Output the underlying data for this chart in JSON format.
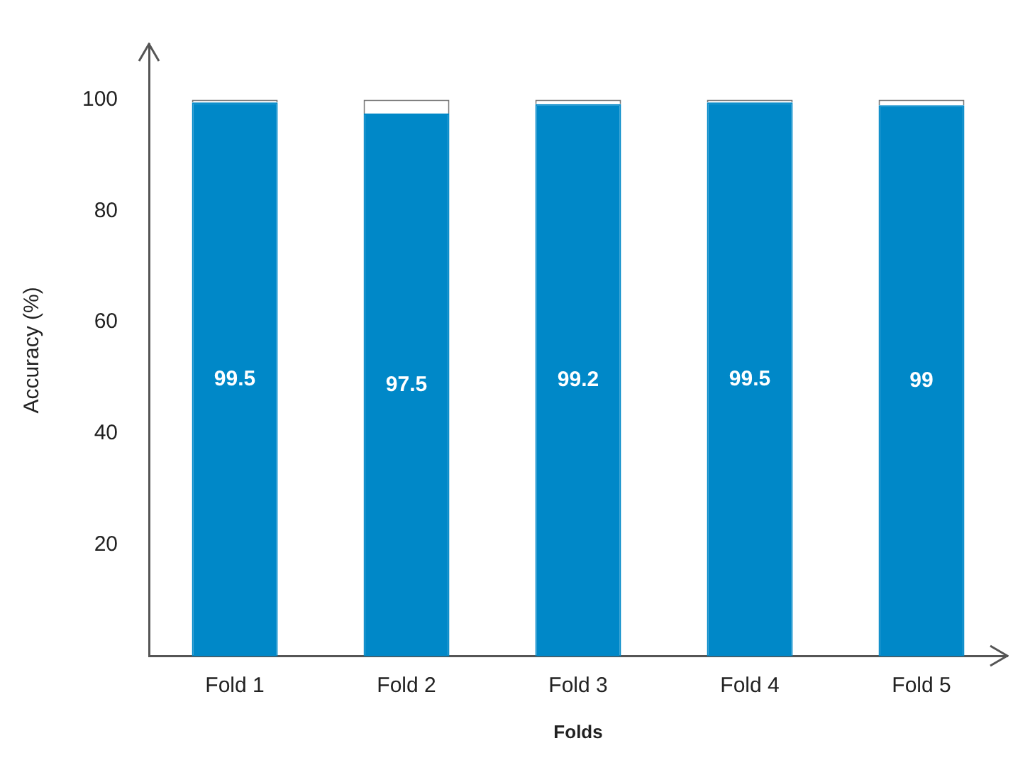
{
  "chart_data": {
    "type": "bar",
    "xlabel": "Folds",
    "ylabel": "Accuracy (%)",
    "categories": [
      "Fold 1",
      "Fold 2",
      "Fold 3",
      "Fold 4",
      "Fold 5"
    ],
    "stacked": true,
    "series": [
      {
        "color": "#0088c8",
        "values": [
          99.5,
          97.5,
          99.2,
          99.5,
          99
        ],
        "value_labels": [
          "99.5",
          "97.5",
          "99.2",
          "99.5",
          "99"
        ]
      },
      {
        "color": "#ffffff",
        "values": [
          0.5,
          2.5,
          0.8,
          0.5,
          1
        ]
      }
    ],
    "ylim": [
      0,
      110
    ],
    "yticks": [
      20,
      40,
      60,
      80,
      100
    ],
    "grid": false,
    "legend": false
  }
}
